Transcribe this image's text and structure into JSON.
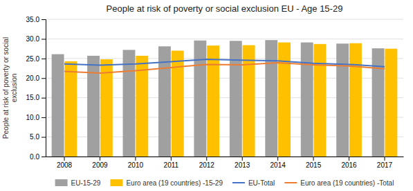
{
  "chart_data": {
    "type": "bar",
    "title": "People at risk of poverty or social exclusion EU - Age 15-29",
    "ylabel": "People at risk of poverty or social\nexclusion",
    "categories": [
      "2008",
      "2009",
      "2010",
      "2011",
      "2012",
      "2013",
      "2014",
      "2015",
      "2016",
      "2017"
    ],
    "series": [
      {
        "name": "EU-15-29",
        "type": "bar",
        "color": "#A0A0A0",
        "values": [
          26.1,
          25.7,
          27.2,
          28.1,
          29.6,
          29.5,
          29.7,
          29.1,
          28.8,
          27.6
        ]
      },
      {
        "name": "Euro area (19 countries) -15-29",
        "type": "bar",
        "color": "#FFC000",
        "values": [
          24.3,
          24.8,
          25.7,
          27.0,
          28.3,
          28.4,
          29.1,
          28.7,
          28.9,
          27.5
        ]
      },
      {
        "name": "EU-Total",
        "type": "line",
        "color": "#4472C4",
        "values": [
          23.6,
          23.3,
          23.6,
          24.2,
          24.8,
          24.6,
          24.4,
          23.8,
          23.5,
          22.9
        ]
      },
      {
        "name": "Euro area (19 countries) -Total",
        "type": "line",
        "color": "#ED7D31",
        "values": [
          21.7,
          21.3,
          21.9,
          22.7,
          23.5,
          23.4,
          23.9,
          23.4,
          23.1,
          22.4
        ]
      }
    ],
    "ylim": [
      0,
      35
    ],
    "yticks": [
      {
        "value": 0,
        "label": "0.0"
      },
      {
        "value": 5,
        "label": "5.0"
      },
      {
        "value": 10,
        "label": "10.0"
      },
      {
        "value": 15,
        "label": "15.0"
      },
      {
        "value": 20,
        "label": "20.0"
      },
      {
        "value": 25,
        "label": "25.0"
      },
      {
        "value": 30,
        "label": "30.0"
      },
      {
        "value": 35,
        "label": "35.0"
      }
    ],
    "grid": true,
    "legend": "bottom"
  }
}
